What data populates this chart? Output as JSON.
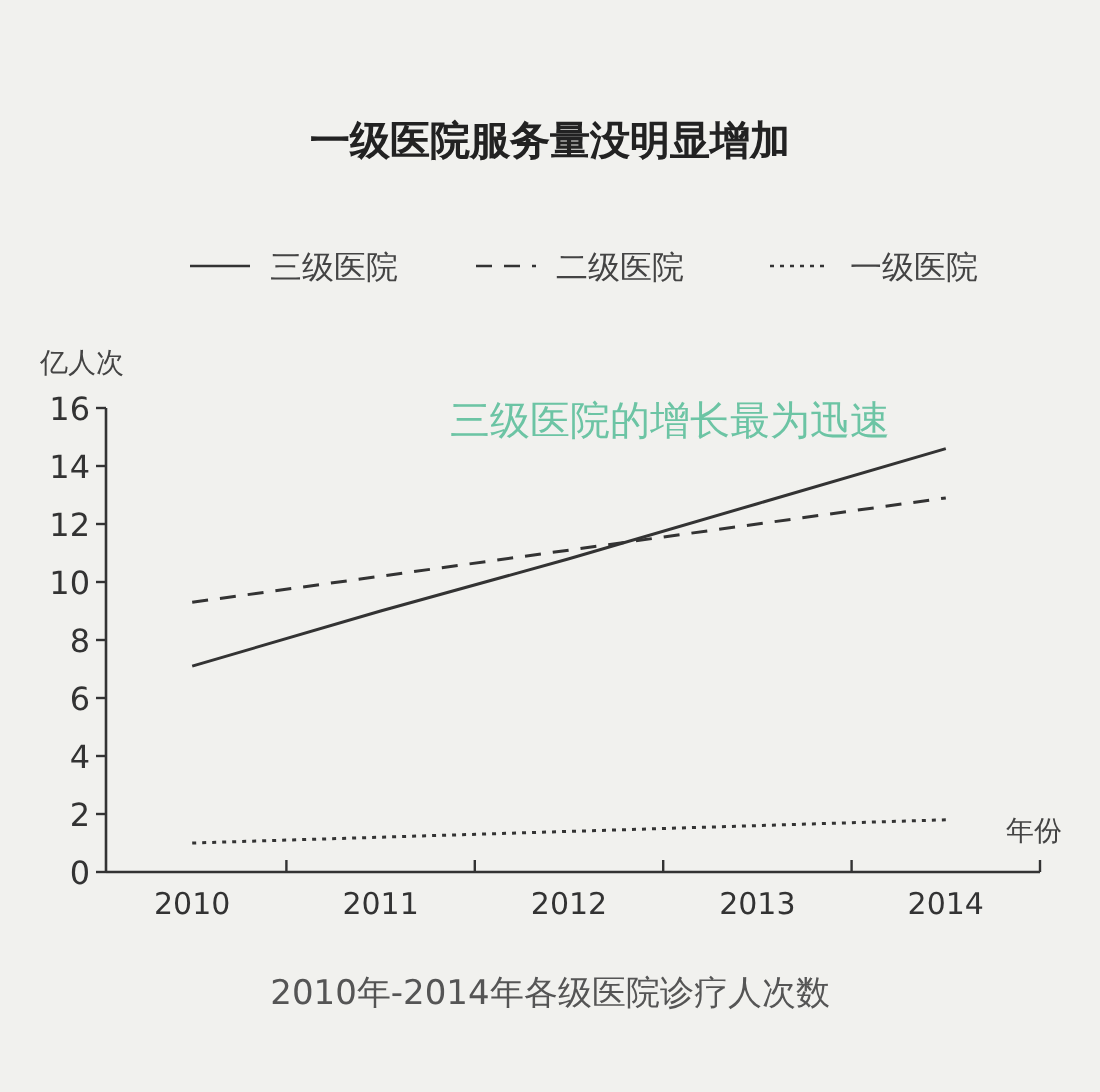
{
  "chart_data": {
    "type": "line",
    "title": "一级医院服务量没明显增加",
    "xlabel": "年份",
    "ylabel": "亿人次",
    "categories": [
      "2010",
      "2011",
      "2012",
      "2013",
      "2014"
    ],
    "series": [
      {
        "name": "三级医院",
        "color": "#333333",
        "line_style": "solid",
        "values": [
          7.1,
          9.0,
          10.8,
          12.7,
          14.6
        ]
      },
      {
        "name": "二级医院",
        "color": "#333333",
        "line_style": "dashed",
        "values": [
          9.3,
          10.2,
          11.1,
          12.0,
          12.9
        ]
      },
      {
        "name": "一级医院",
        "color": "#333333",
        "line_style": "dotted",
        "values": [
          1.0,
          1.2,
          1.4,
          1.6,
          1.8
        ]
      }
    ],
    "ylim": [
      0,
      16
    ],
    "yticks": [
      0,
      2,
      4,
      6,
      8,
      10,
      12,
      14,
      16
    ],
    "grid": false,
    "legend": "top",
    "marker": "none",
    "annotations": [
      "三级医院的增长最为迅速",
      "2010年-2014年各级医院诊疗人次数"
    ]
  }
}
